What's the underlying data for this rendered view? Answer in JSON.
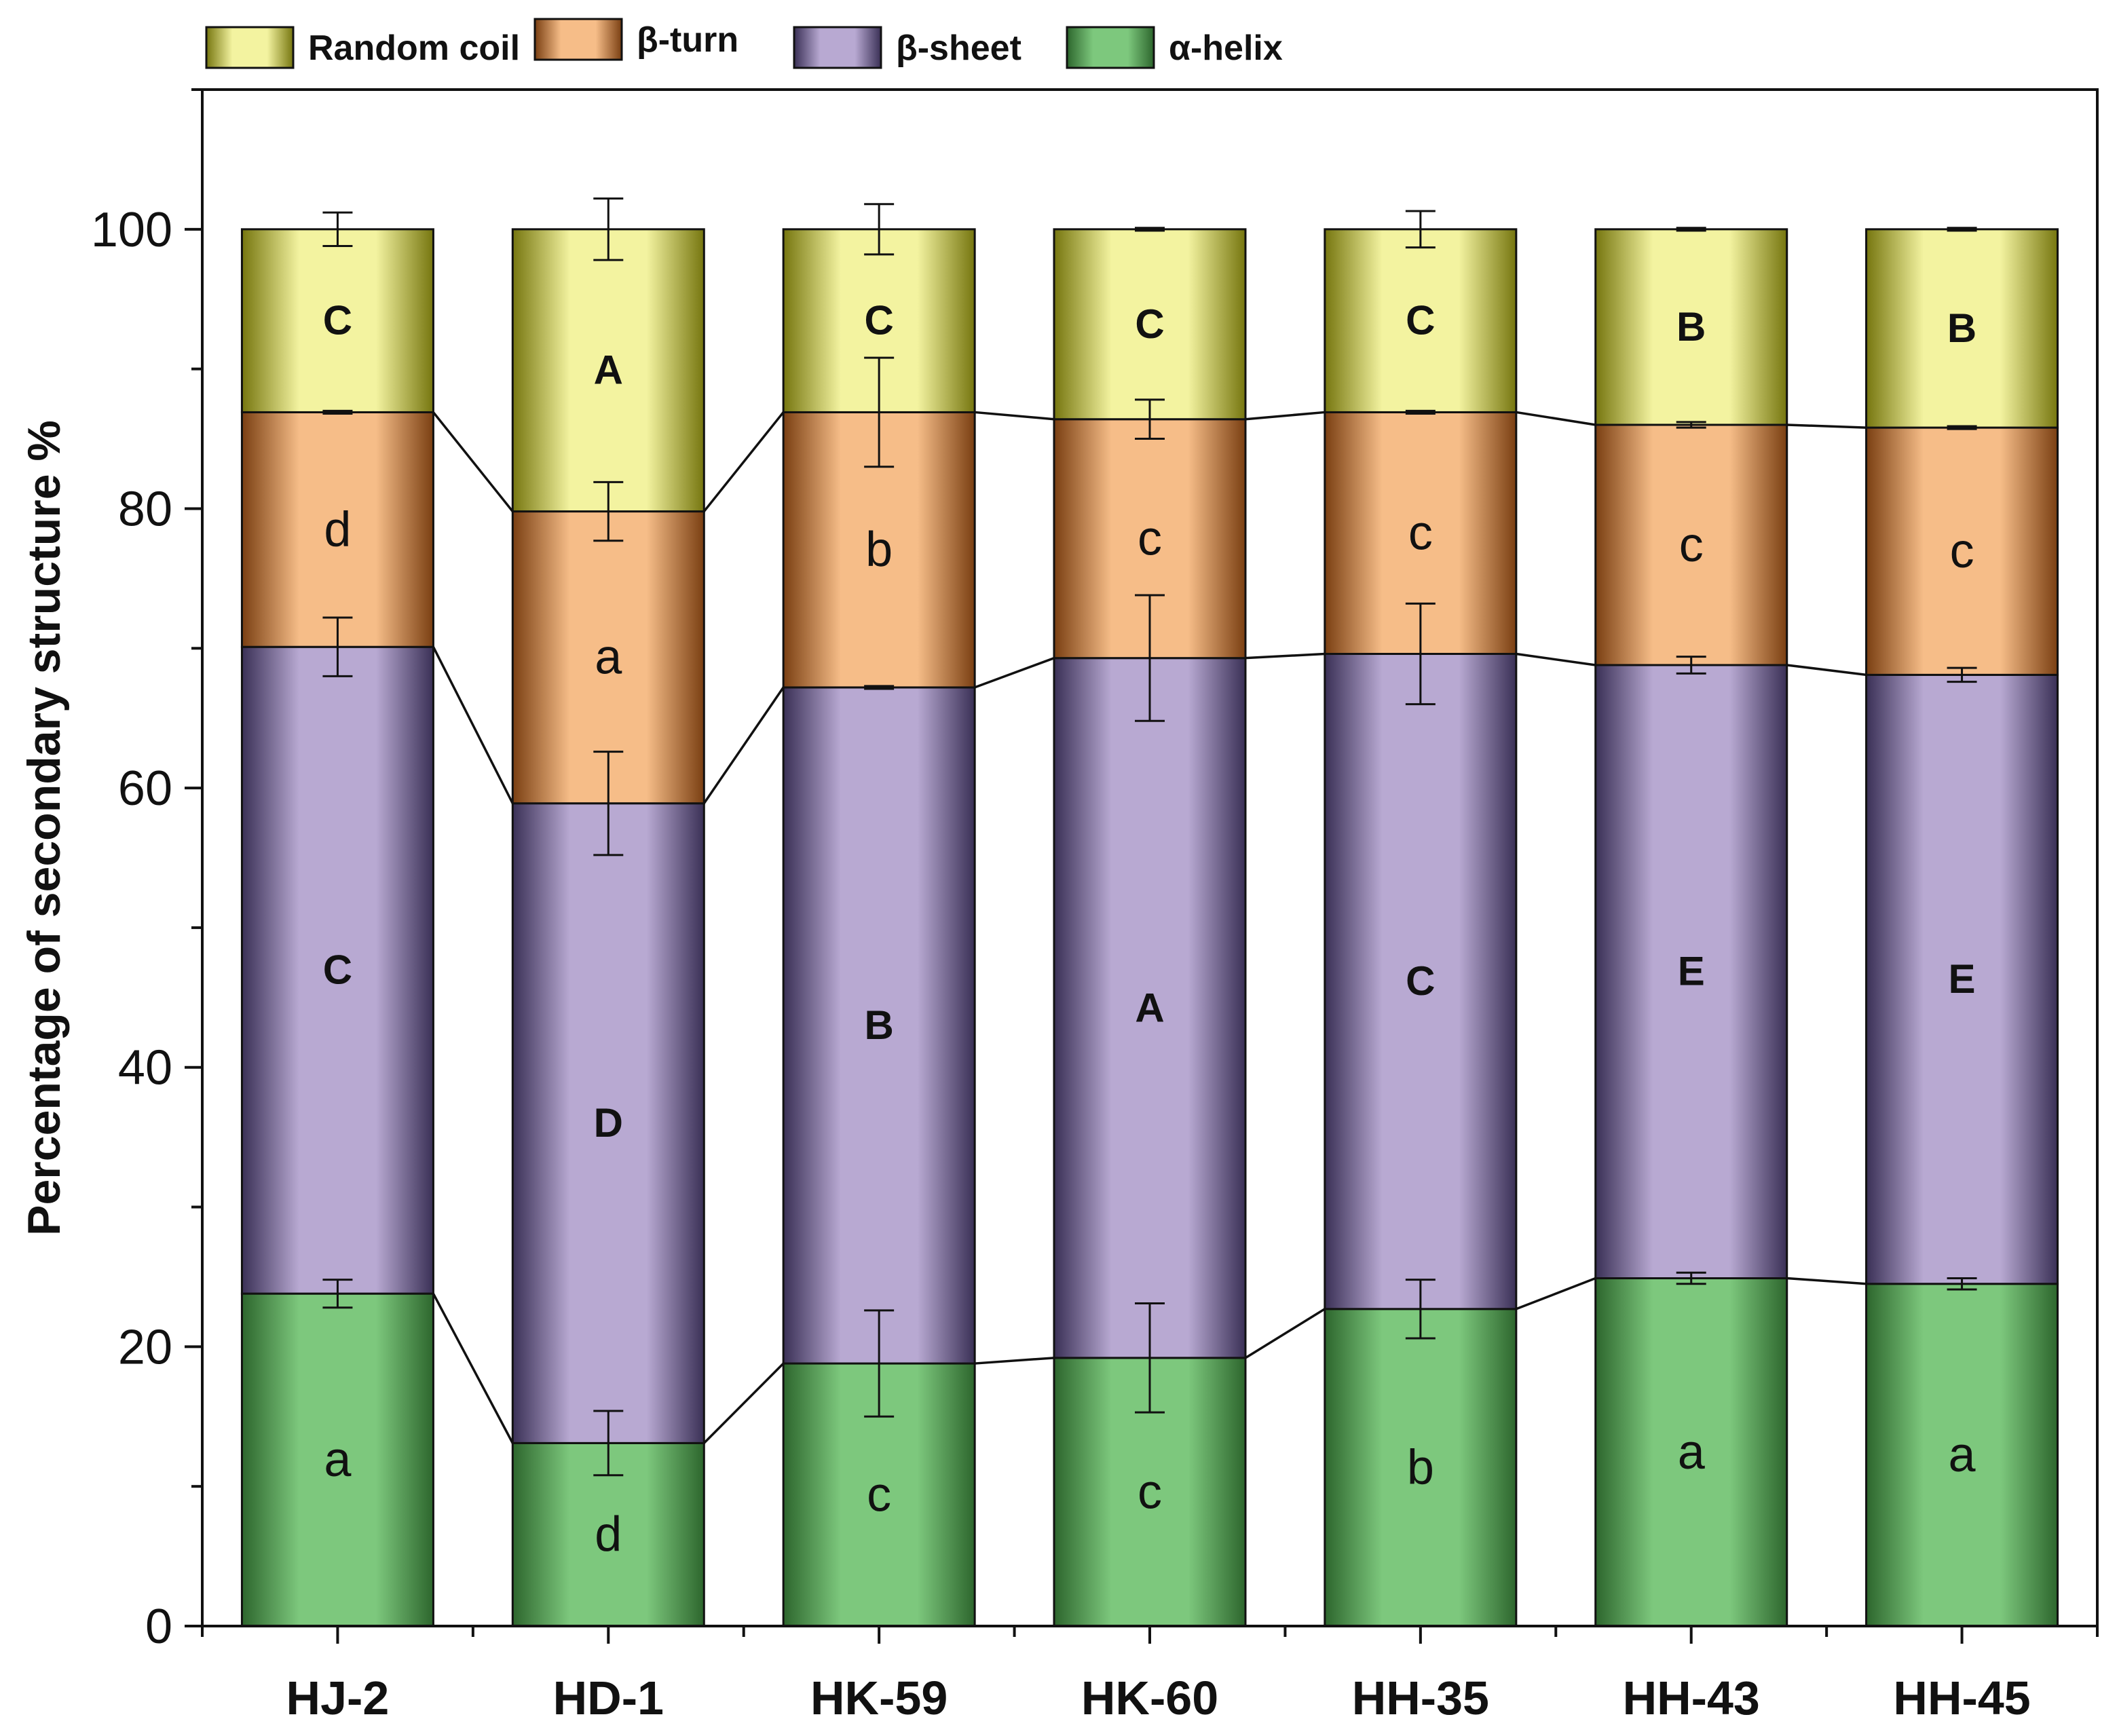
{
  "chart_data": {
    "type": "stacked-bar",
    "ylabel": "Percentage of secondary structure %",
    "xlabel": "",
    "ylim": [
      0,
      110
    ],
    "yticks": [
      0,
      20,
      40,
      60,
      80,
      100
    ],
    "categories": [
      "HJ-2",
      "HD-1",
      "HK-59",
      "HK-60",
      "HH-35",
      "HH-43",
      "HH-45"
    ],
    "series": [
      {
        "name": "α-helix",
        "color": "#7dc87d",
        "dark": "#2d662d",
        "values": [
          23.8,
          13.1,
          18.8,
          19.2,
          22.7,
          24.9,
          24.5
        ],
        "errors": [
          1.0,
          2.3,
          3.8,
          3.9,
          2.1,
          0.4,
          0.4
        ],
        "letters": [
          "a",
          "d",
          "c",
          "c",
          "b",
          "a",
          "a"
        ]
      },
      {
        "name": "β-sheet",
        "color": "#b8a9d2",
        "dark": "#3a3056",
        "values": [
          46.3,
          45.8,
          48.4,
          50.1,
          46.9,
          43.9,
          43.6
        ],
        "errors": [
          2.1,
          3.7,
          0.1,
          4.5,
          3.6,
          0.6,
          0.5
        ],
        "letters": [
          "C",
          "D",
          "B",
          "A",
          "C",
          "E",
          "E"
        ]
      },
      {
        "name": "β-turn",
        "color": "#f6bd88",
        "dark": "#7a3f12",
        "values": [
          16.8,
          20.9,
          19.7,
          17.1,
          17.3,
          17.2,
          17.7
        ],
        "errors": [
          0.1,
          2.1,
          3.9,
          1.4,
          0.1,
          0.2,
          0.1
        ],
        "letters": [
          "d",
          "a",
          "b",
          "c",
          "c",
          "c",
          "c"
        ]
      },
      {
        "name": "Random coil",
        "color": "#f3f3a0",
        "dark": "#76760f",
        "values": [
          13.1,
          20.2,
          13.1,
          13.6,
          13.1,
          14.0,
          14.2
        ],
        "errors": [
          1.2,
          2.2,
          1.8,
          0.1,
          1.3,
          0.1,
          0.1
        ],
        "letters": [
          "C",
          "A",
          "C",
          "C",
          "C",
          "B",
          "B"
        ]
      }
    ],
    "legend": [
      "Random coil",
      "β-turn",
      "β-sheet",
      "α-helix"
    ],
    "legend_position": "top-left"
  }
}
